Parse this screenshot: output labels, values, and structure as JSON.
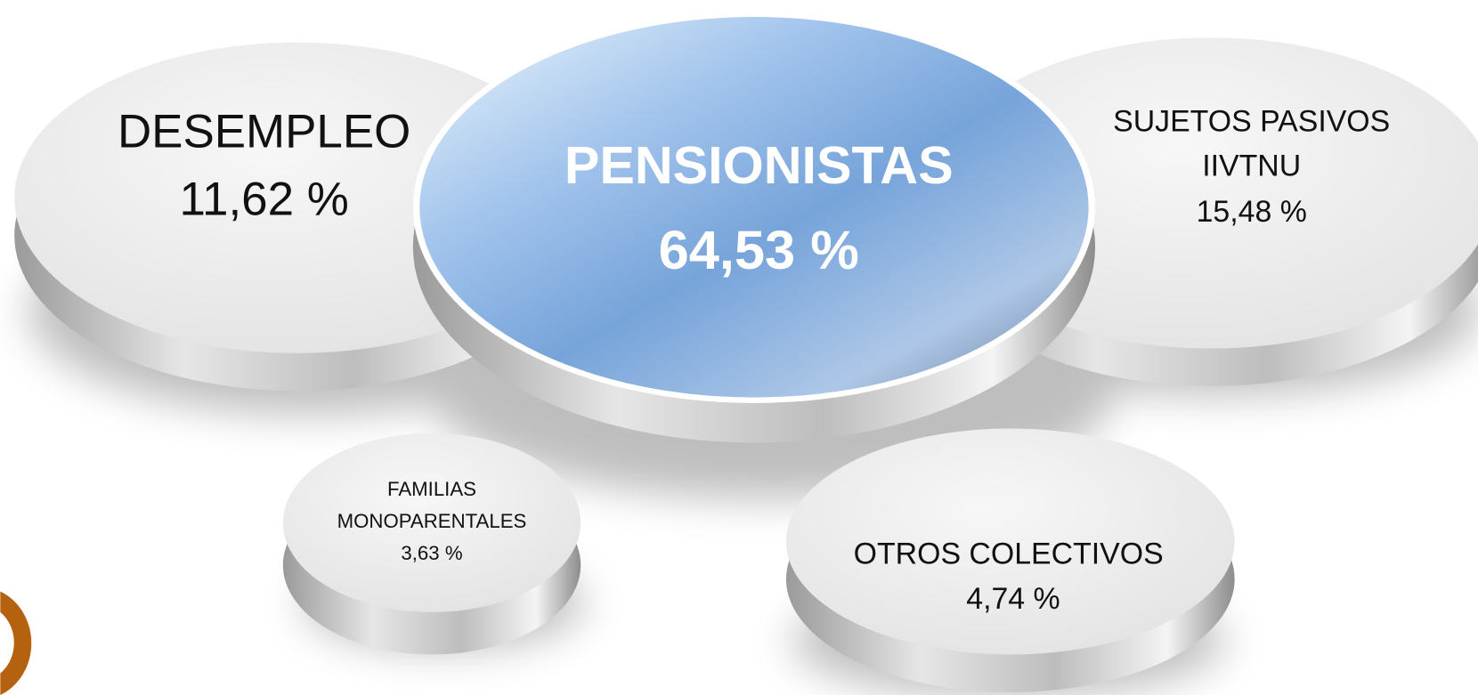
{
  "items": [
    {
      "label": [
        "DESEMPLEO"
      ],
      "value": "11,62 %"
    },
    {
      "label": [
        "PENSIONISTAS"
      ],
      "value": "64,53 %"
    },
    {
      "label": [
        "SUJETOS PASIVOS",
        "IIVTNU"
      ],
      "value": "15,48 %"
    },
    {
      "label": [
        "FAMILIAS",
        "MONOPARENTALES"
      ],
      "value": "3,63 %"
    },
    {
      "label": [
        "OTROS COLECTIVOS"
      ],
      "value": "4,74 %"
    }
  ]
}
